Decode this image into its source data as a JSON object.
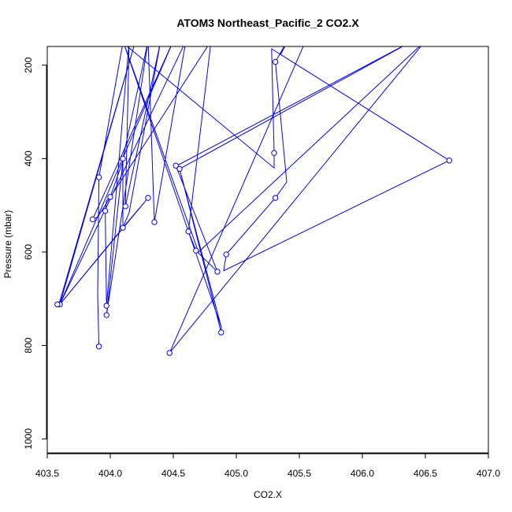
{
  "chart_data": {
    "type": "line",
    "title": "ATOM3 Northeast_Pacific_2 CO2.X",
    "xlabel": "CO2.X",
    "ylabel": "Pressure (mbar)",
    "xlim": [
      403.5,
      407.0
    ],
    "ylim": [
      1030,
      160
    ],
    "y_reversed": true,
    "x_ticks": [
      "403.5",
      "404.0",
      "404.5",
      "405.0",
      "405.5",
      "406.0",
      "406.5",
      "407.0"
    ],
    "y_ticks": [
      "200",
      "400",
      "600",
      "800",
      "1000"
    ],
    "x_tick_values": [
      403.5,
      404.0,
      404.5,
      405.0,
      405.5,
      406.0,
      406.5,
      407.0
    ],
    "y_tick_values": [
      200,
      400,
      600,
      800,
      1000
    ],
    "grid": false,
    "line_color": "#0000ff",
    "marker": "open-circle",
    "series": [
      {
        "points": [
          {
            "x": 403.91,
            "y": 802,
            "marker": true
          },
          {
            "x": 403.9,
            "y": 692,
            "marker": false
          },
          {
            "x": 403.91,
            "y": 440,
            "marker": true
          },
          {
            "x": 404.1,
            "y": 152,
            "marker": false
          },
          {
            "x": 405.3,
            "y": 420,
            "marker": false
          },
          {
            "x": 405.3,
            "y": 388,
            "marker": true
          },
          {
            "x": 405.28,
            "y": 165,
            "marker": false
          },
          {
            "x": 406.69,
            "y": 404,
            "marker": true
          },
          {
            "x": 404.9,
            "y": 640,
            "marker": false
          },
          {
            "x": 404.92,
            "y": 605,
            "marker": true
          },
          {
            "x": 405.31,
            "y": 484,
            "marker": true
          },
          {
            "x": 405.4,
            "y": 450,
            "marker": false
          },
          {
            "x": 405.31,
            "y": 193,
            "marker": true
          },
          {
            "x": 405.4,
            "y": 150,
            "marker": false
          },
          {
            "x": 405.4,
            "y": 150,
            "marker": false
          },
          {
            "x": 405.35,
            "y": 178,
            "marker": false
          },
          {
            "x": 405.4,
            "y": 152,
            "marker": false
          },
          {
            "x": 404.7,
            "y": 148,
            "marker": false
          },
          {
            "x": 404.3,
            "y": 148,
            "marker": false
          },
          {
            "x": 403.97,
            "y": 735,
            "marker": true
          },
          {
            "x": 404.1,
            "y": 405,
            "marker": false
          },
          {
            "x": 404.1,
            "y": 548,
            "marker": true
          },
          {
            "x": 404.15,
            "y": 515,
            "marker": false
          },
          {
            "x": 404.4,
            "y": 148,
            "marker": false
          },
          {
            "x": 404.12,
            "y": 502,
            "marker": true
          },
          {
            "x": 404.15,
            "y": 148,
            "marker": false
          },
          {
            "x": 403.97,
            "y": 715,
            "marker": true
          },
          {
            "x": 403.96,
            "y": 512,
            "marker": true
          },
          {
            "x": 403.97,
            "y": 490,
            "marker": false
          },
          {
            "x": 404.0,
            "y": 482,
            "marker": true
          },
          {
            "x": 404.1,
            "y": 405,
            "marker": false
          },
          {
            "x": 404.1,
            "y": 400,
            "marker": true
          },
          {
            "x": 404.3,
            "y": 148,
            "marker": false
          },
          {
            "x": 404.35,
            "y": 536,
            "marker": true
          },
          {
            "x": 404.6,
            "y": 148,
            "marker": false
          },
          {
            "x": 403.6,
            "y": 712,
            "marker": true
          },
          {
            "x": 403.58,
            "y": 712,
            "marker": true
          },
          {
            "x": 403.6,
            "y": 705,
            "marker": false
          },
          {
            "x": 404.2,
            "y": 148,
            "marker": false
          },
          {
            "x": 403.6,
            "y": 712,
            "marker": false
          },
          {
            "x": 404.3,
            "y": 484,
            "marker": true
          },
          {
            "x": 404.1,
            "y": 548,
            "marker": false
          },
          {
            "x": 403.6,
            "y": 712,
            "marker": false
          },
          {
            "x": 404.5,
            "y": 148,
            "marker": false
          },
          {
            "x": 403.86,
            "y": 530,
            "marker": true
          },
          {
            "x": 403.9,
            "y": 525,
            "marker": false
          },
          {
            "x": 404.8,
            "y": 148,
            "marker": false
          },
          {
            "x": 404.62,
            "y": 556,
            "marker": true
          },
          {
            "x": 404.68,
            "y": 597,
            "marker": true
          },
          {
            "x": 404.85,
            "y": 642,
            "marker": true
          },
          {
            "x": 404.52,
            "y": 415,
            "marker": true
          },
          {
            "x": 404.55,
            "y": 412,
            "marker": false
          },
          {
            "x": 406.4,
            "y": 148,
            "marker": false
          },
          {
            "x": 404.55,
            "y": 422,
            "marker": true
          },
          {
            "x": 404.88,
            "y": 772,
            "marker": true
          },
          {
            "x": 404.88,
            "y": 760,
            "marker": false
          },
          {
            "x": 404.55,
            "y": 422,
            "marker": false
          },
          {
            "x": 404.88,
            "y": 760,
            "marker": false
          },
          {
            "x": 404.1,
            "y": 148,
            "marker": false
          },
          {
            "x": 404.7,
            "y": 600,
            "marker": false
          },
          {
            "x": 406.5,
            "y": 148,
            "marker": false
          },
          {
            "x": 404.47,
            "y": 816,
            "marker": true
          },
          {
            "x": 405.55,
            "y": 148,
            "marker": false
          }
        ]
      }
    ]
  }
}
